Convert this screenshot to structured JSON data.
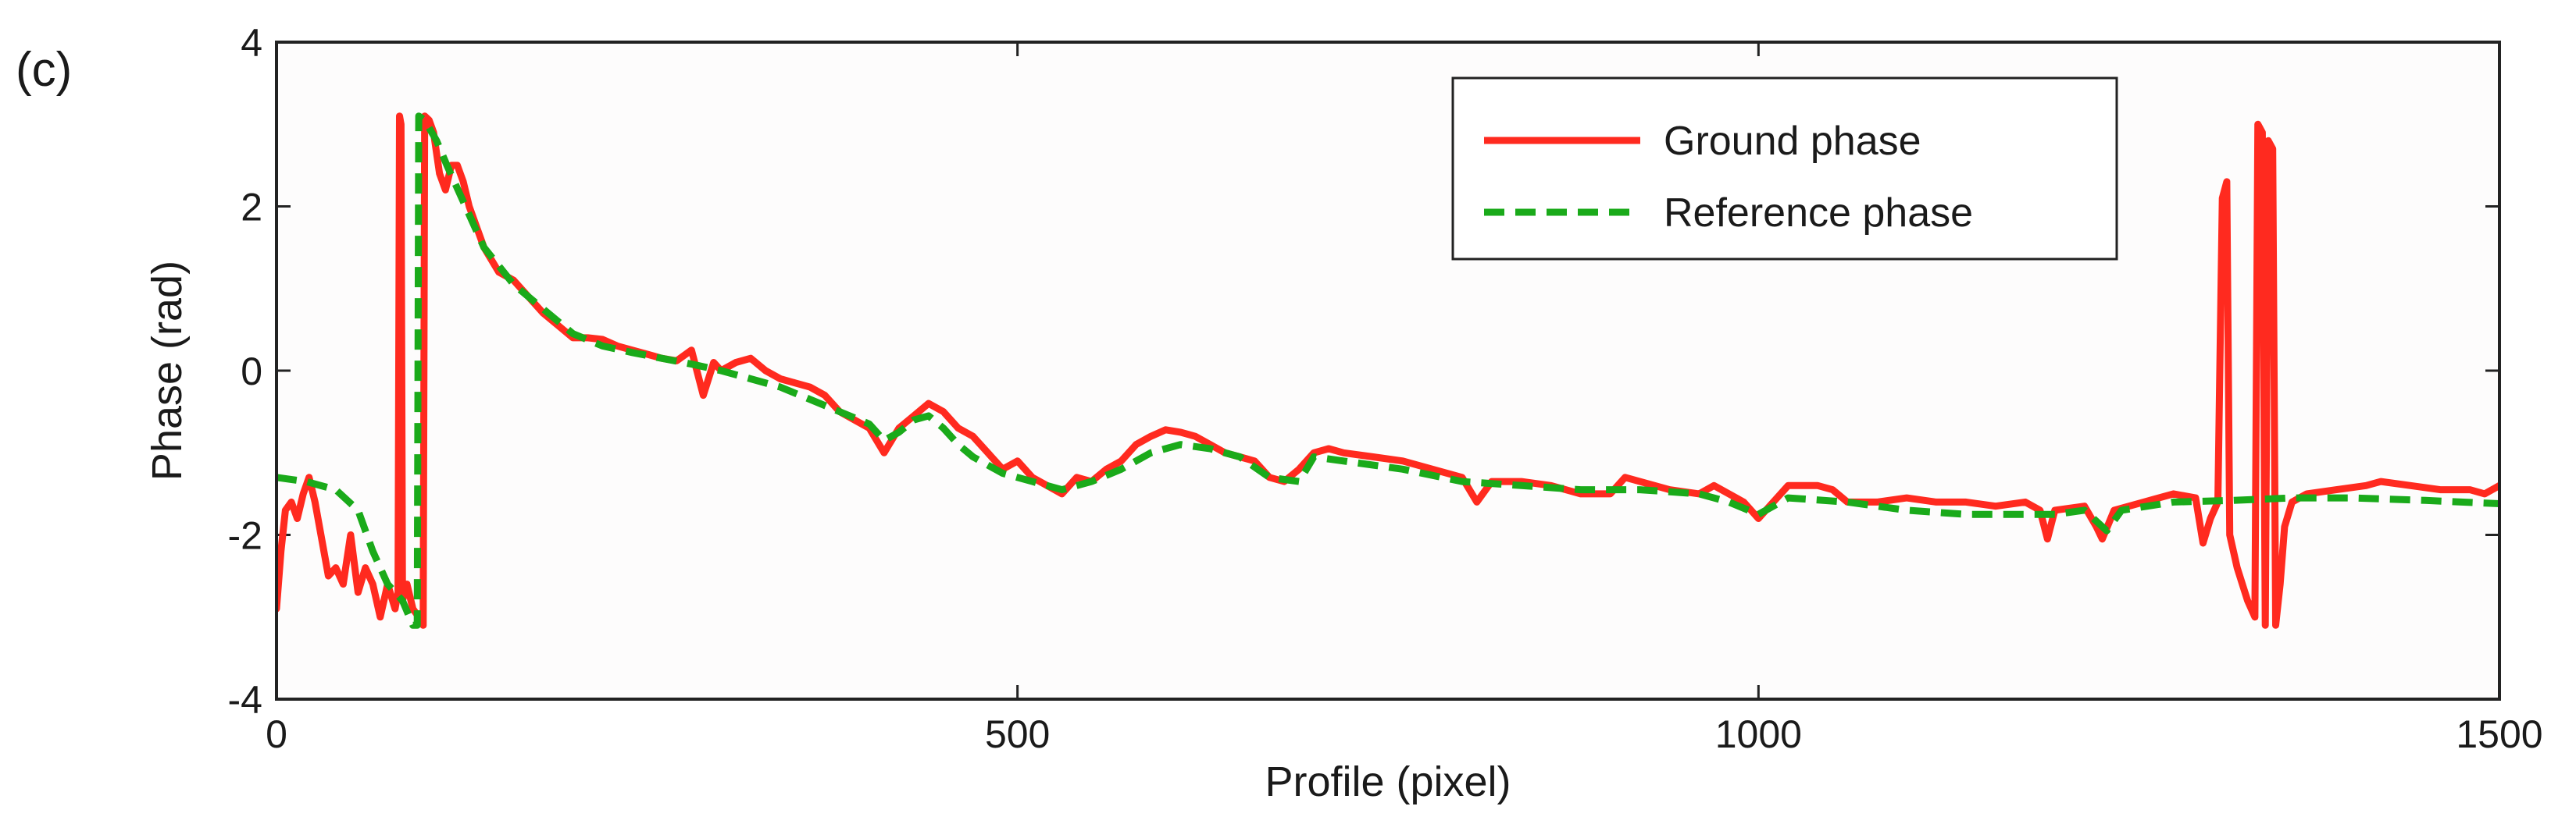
{
  "panel_label": "(c)",
  "chart_data": {
    "type": "line",
    "xlabel": "Profile (pixel)",
    "ylabel": "Phase (rad)",
    "xlim": [
      0,
      1500
    ],
    "ylim": [
      -4,
      4
    ],
    "xticks": [
      0,
      500,
      1000,
      1500
    ],
    "yticks": [
      -4,
      -2,
      0,
      2,
      4
    ],
    "grid": false,
    "legend_position": "top-right",
    "series": [
      {
        "name": "Ground phase",
        "color": "#ff2a1f",
        "style": "solid",
        "points": [
          [
            0,
            -2.9
          ],
          [
            3,
            -2.2
          ],
          [
            6,
            -1.7
          ],
          [
            10,
            -1.6
          ],
          [
            14,
            -1.8
          ],
          [
            18,
            -1.5
          ],
          [
            22,
            -1.3
          ],
          [
            26,
            -1.6
          ],
          [
            30,
            -2.0
          ],
          [
            35,
            -2.5
          ],
          [
            40,
            -2.4
          ],
          [
            45,
            -2.6
          ],
          [
            50,
            -2.0
          ],
          [
            55,
            -2.7
          ],
          [
            60,
            -2.4
          ],
          [
            65,
            -2.6
          ],
          [
            70,
            -3.0
          ],
          [
            75,
            -2.6
          ],
          [
            80,
            -2.9
          ],
          [
            82,
            -2.7
          ],
          [
            83,
            3.1
          ],
          [
            84,
            3.0
          ],
          [
            85,
            -2.8
          ],
          [
            88,
            -2.6
          ],
          [
            92,
            -2.9
          ],
          [
            96,
            -3.0
          ],
          [
            99,
            -3.1
          ],
          [
            100,
            3.1
          ],
          [
            103,
            3.05
          ],
          [
            106,
            2.9
          ],
          [
            110,
            2.4
          ],
          [
            114,
            2.2
          ],
          [
            118,
            2.5
          ],
          [
            122,
            2.5
          ],
          [
            126,
            2.3
          ],
          [
            130,
            2.0
          ],
          [
            140,
            1.5
          ],
          [
            150,
            1.2
          ],
          [
            160,
            1.1
          ],
          [
            170,
            0.9
          ],
          [
            180,
            0.7
          ],
          [
            190,
            0.55
          ],
          [
            200,
            0.4
          ],
          [
            210,
            0.4
          ],
          [
            220,
            0.38
          ],
          [
            230,
            0.3
          ],
          [
            240,
            0.25
          ],
          [
            250,
            0.2
          ],
          [
            260,
            0.15
          ],
          [
            270,
            0.12
          ],
          [
            280,
            0.25
          ],
          [
            288,
            -0.3
          ],
          [
            295,
            0.1
          ],
          [
            300,
            0.0
          ],
          [
            310,
            0.1
          ],
          [
            320,
            0.15
          ],
          [
            330,
            0.0
          ],
          [
            340,
            -0.1
          ],
          [
            350,
            -0.15
          ],
          [
            360,
            -0.2
          ],
          [
            370,
            -0.3
          ],
          [
            380,
            -0.5
          ],
          [
            390,
            -0.6
          ],
          [
            400,
            -0.7
          ],
          [
            410,
            -1.0
          ],
          [
            420,
            -0.7
          ],
          [
            430,
            -0.55
          ],
          [
            440,
            -0.4
          ],
          [
            450,
            -0.5
          ],
          [
            460,
            -0.7
          ],
          [
            470,
            -0.8
          ],
          [
            480,
            -1.0
          ],
          [
            490,
            -1.2
          ],
          [
            500,
            -1.1
          ],
          [
            510,
            -1.3
          ],
          [
            520,
            -1.4
          ],
          [
            530,
            -1.5
          ],
          [
            540,
            -1.3
          ],
          [
            550,
            -1.35
          ],
          [
            560,
            -1.2
          ],
          [
            570,
            -1.1
          ],
          [
            580,
            -0.9
          ],
          [
            590,
            -0.8
          ],
          [
            600,
            -0.72
          ],
          [
            610,
            -0.75
          ],
          [
            620,
            -0.8
          ],
          [
            630,
            -0.9
          ],
          [
            640,
            -1.0
          ],
          [
            650,
            -1.05
          ],
          [
            660,
            -1.1
          ],
          [
            670,
            -1.3
          ],
          [
            680,
            -1.35
          ],
          [
            690,
            -1.2
          ],
          [
            700,
            -1.0
          ],
          [
            710,
            -0.95
          ],
          [
            720,
            -1.0
          ],
          [
            740,
            -1.05
          ],
          [
            760,
            -1.1
          ],
          [
            780,
            -1.2
          ],
          [
            800,
            -1.3
          ],
          [
            810,
            -1.6
          ],
          [
            820,
            -1.35
          ],
          [
            840,
            -1.35
          ],
          [
            860,
            -1.4
          ],
          [
            880,
            -1.5
          ],
          [
            900,
            -1.5
          ],
          [
            910,
            -1.3
          ],
          [
            920,
            -1.35
          ],
          [
            940,
            -1.45
          ],
          [
            960,
            -1.5
          ],
          [
            970,
            -1.4
          ],
          [
            990,
            -1.6
          ],
          [
            1000,
            -1.8
          ],
          [
            1010,
            -1.6
          ],
          [
            1020,
            -1.4
          ],
          [
            1040,
            -1.4
          ],
          [
            1050,
            -1.45
          ],
          [
            1060,
            -1.6
          ],
          [
            1080,
            -1.6
          ],
          [
            1100,
            -1.55
          ],
          [
            1120,
            -1.6
          ],
          [
            1140,
            -1.6
          ],
          [
            1160,
            -1.65
          ],
          [
            1180,
            -1.6
          ],
          [
            1190,
            -1.7
          ],
          [
            1195,
            -2.05
          ],
          [
            1200,
            -1.7
          ],
          [
            1220,
            -1.65
          ],
          [
            1228,
            -1.9
          ],
          [
            1232,
            -2.05
          ],
          [
            1240,
            -1.7
          ],
          [
            1260,
            -1.6
          ],
          [
            1280,
            -1.5
          ],
          [
            1295,
            -1.55
          ],
          [
            1300,
            -2.1
          ],
          [
            1305,
            -1.8
          ],
          [
            1310,
            -1.6
          ],
          [
            1313,
            2.1
          ],
          [
            1316,
            2.3
          ],
          [
            1318,
            -2.0
          ],
          [
            1323,
            -2.4
          ],
          [
            1330,
            -2.8
          ],
          [
            1335,
            -3.0
          ],
          [
            1337,
            3.0
          ],
          [
            1340,
            2.9
          ],
          [
            1342,
            -3.1
          ],
          [
            1344,
            2.8
          ],
          [
            1347,
            2.7
          ],
          [
            1349,
            -3.1
          ],
          [
            1352,
            -2.6
          ],
          [
            1355,
            -1.9
          ],
          [
            1360,
            -1.6
          ],
          [
            1370,
            -1.5
          ],
          [
            1390,
            -1.45
          ],
          [
            1410,
            -1.4
          ],
          [
            1420,
            -1.35
          ],
          [
            1440,
            -1.4
          ],
          [
            1460,
            -1.45
          ],
          [
            1480,
            -1.45
          ],
          [
            1490,
            -1.5
          ],
          [
            1500,
            -1.4
          ]
        ]
      },
      {
        "name": "Reference phase",
        "color": "#1aaa1a",
        "style": "dashed",
        "points": [
          [
            0,
            -1.3
          ],
          [
            20,
            -1.35
          ],
          [
            40,
            -1.45
          ],
          [
            55,
            -1.7
          ],
          [
            65,
            -2.2
          ],
          [
            75,
            -2.6
          ],
          [
            85,
            -2.8
          ],
          [
            92,
            -3.1
          ],
          [
            95,
            -3.1
          ],
          [
            96,
            3.1
          ],
          [
            100,
            3.05
          ],
          [
            108,
            2.8
          ],
          [
            115,
            2.5
          ],
          [
            125,
            2.1
          ],
          [
            140,
            1.5
          ],
          [
            160,
            1.05
          ],
          [
            180,
            0.75
          ],
          [
            200,
            0.45
          ],
          [
            220,
            0.3
          ],
          [
            240,
            0.22
          ],
          [
            260,
            0.15
          ],
          [
            280,
            0.08
          ],
          [
            300,
            0.0
          ],
          [
            320,
            -0.1
          ],
          [
            340,
            -0.2
          ],
          [
            360,
            -0.35
          ],
          [
            380,
            -0.5
          ],
          [
            400,
            -0.65
          ],
          [
            410,
            -0.85
          ],
          [
            420,
            -0.75
          ],
          [
            430,
            -0.6
          ],
          [
            440,
            -0.55
          ],
          [
            450,
            -0.7
          ],
          [
            460,
            -0.9
          ],
          [
            470,
            -1.05
          ],
          [
            490,
            -1.25
          ],
          [
            510,
            -1.35
          ],
          [
            530,
            -1.45
          ],
          [
            550,
            -1.35
          ],
          [
            570,
            -1.2
          ],
          [
            590,
            -1.0
          ],
          [
            610,
            -0.9
          ],
          [
            630,
            -0.95
          ],
          [
            650,
            -1.05
          ],
          [
            670,
            -1.3
          ],
          [
            690,
            -1.35
          ],
          [
            700,
            -1.05
          ],
          [
            720,
            -1.1
          ],
          [
            760,
            -1.2
          ],
          [
            800,
            -1.35
          ],
          [
            840,
            -1.4
          ],
          [
            880,
            -1.45
          ],
          [
            920,
            -1.45
          ],
          [
            960,
            -1.5
          ],
          [
            980,
            -1.6
          ],
          [
            1000,
            -1.75
          ],
          [
            1020,
            -1.55
          ],
          [
            1060,
            -1.6
          ],
          [
            1100,
            -1.7
          ],
          [
            1140,
            -1.75
          ],
          [
            1180,
            -1.75
          ],
          [
            1200,
            -1.75
          ],
          [
            1220,
            -1.7
          ],
          [
            1235,
            -1.95
          ],
          [
            1245,
            -1.7
          ],
          [
            1280,
            -1.6
          ],
          [
            1320,
            -1.58
          ],
          [
            1360,
            -1.55
          ],
          [
            1400,
            -1.55
          ],
          [
            1450,
            -1.58
          ],
          [
            1500,
            -1.62
          ]
        ]
      }
    ]
  }
}
